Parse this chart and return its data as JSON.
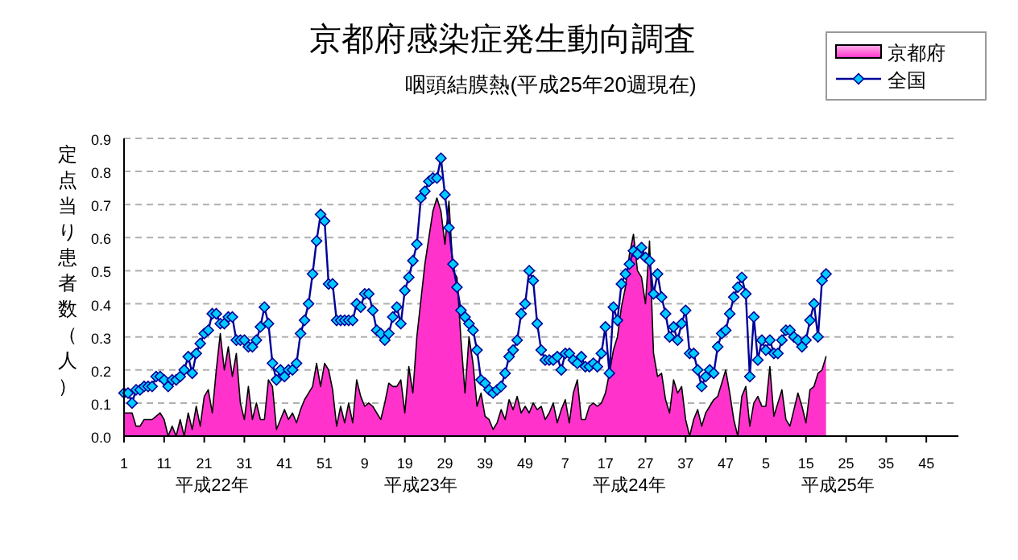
{
  "chart_data": {
    "type": "area",
    "title": "京都府感染症発生動向調査",
    "subtitle": "咽頭結膜熱(平成25年20週現在)",
    "ylabel": "定点当り患者数（人）",
    "annotations": [
      "平成22年",
      "平成23年",
      "平成24年",
      "平成25年"
    ],
    "categories": [
      "1",
      null,
      null,
      null,
      null,
      null,
      null,
      null,
      null,
      null,
      "11",
      null,
      null,
      null,
      null,
      null,
      null,
      null,
      null,
      null,
      "21",
      null,
      null,
      null,
      null,
      null,
      null,
      null,
      null,
      null,
      "31",
      null,
      null,
      null,
      null,
      null,
      null,
      null,
      null,
      null,
      "41",
      null,
      null,
      null,
      null,
      null,
      null,
      null,
      null,
      null,
      "51",
      null,
      null,
      null,
      null,
      null,
      null,
      null,
      null,
      null,
      "9",
      null,
      null,
      null,
      null,
      null,
      null,
      null,
      null,
      null,
      "19",
      null,
      null,
      null,
      null,
      null,
      null,
      null,
      null,
      null,
      "29",
      null,
      null,
      null,
      null,
      null,
      null,
      null,
      null,
      null,
      "39",
      null,
      null,
      null,
      null,
      null,
      null,
      null,
      null,
      null,
      "49",
      null,
      null,
      null,
      null,
      null,
      null,
      null,
      null,
      null,
      "7",
      null,
      null,
      null,
      null,
      null,
      null,
      null,
      null,
      null,
      "17",
      null,
      null,
      null,
      null,
      null,
      null,
      null,
      null,
      null,
      "27",
      null,
      null,
      null,
      null,
      null,
      null,
      null,
      null,
      null,
      "37",
      null,
      null,
      null,
      null,
      null,
      null,
      null,
      null,
      null,
      "47",
      null,
      null,
      null,
      null,
      null,
      null,
      null,
      null,
      null,
      "5",
      null,
      null,
      null,
      null,
      null,
      null,
      null,
      null,
      null,
      "15",
      null,
      null,
      null,
      null,
      null,
      null,
      null,
      null,
      null,
      "25",
      null,
      null,
      null,
      null,
      null,
      null,
      null,
      null,
      null,
      "35",
      null,
      null,
      null,
      null,
      null,
      null,
      null,
      null,
      null,
      "45",
      null,
      null,
      null,
      null,
      null,
      null,
      null
    ],
    "series": [
      {
        "name": "京都府",
        "color": "#ff33cc",
        "values": [
          0.07,
          0.07,
          0.07,
          0.03,
          0.03,
          0.05,
          0.05,
          0.05,
          0.06,
          0.07,
          0.05,
          0.0,
          0.03,
          0.0,
          0.05,
          0.0,
          0.07,
          0.02,
          0.09,
          0.03,
          0.12,
          0.14,
          0.07,
          0.2,
          0.31,
          0.2,
          0.27,
          0.18,
          0.25,
          0.1,
          0.05,
          0.15,
          0.05,
          0.1,
          0.05,
          0.05,
          0.17,
          0.15,
          0.02,
          0.05,
          0.08,
          0.05,
          0.07,
          0.04,
          0.08,
          0.11,
          0.13,
          0.15,
          0.22,
          0.15,
          0.22,
          0.2,
          0.14,
          0.03,
          0.09,
          0.04,
          0.1,
          0.04,
          0.17,
          0.12,
          0.09,
          0.1,
          0.09,
          0.07,
          0.05,
          0.1,
          0.16,
          0.15,
          0.15,
          0.17,
          0.07,
          0.21,
          0.13,
          0.3,
          0.41,
          0.52,
          0.6,
          0.68,
          0.72,
          0.68,
          0.58,
          0.71,
          0.5,
          0.48,
          0.29,
          0.13,
          0.3,
          0.22,
          0.09,
          0.13,
          0.06,
          0.05,
          0.02,
          0.04,
          0.08,
          0.05,
          0.11,
          0.08,
          0.12,
          0.07,
          0.09,
          0.07,
          0.1,
          0.08,
          0.09,
          0.05,
          0.07,
          0.1,
          0.04,
          0.08,
          0.11,
          0.04,
          0.13,
          0.17,
          0.05,
          0.05,
          0.09,
          0.1,
          0.09,
          0.1,
          0.13,
          0.19,
          0.26,
          0.3,
          0.39,
          0.45,
          0.55,
          0.61,
          0.5,
          0.48,
          0.4,
          0.59,
          0.25,
          0.18,
          0.19,
          0.11,
          0.07,
          0.17,
          0.13,
          0.15,
          0.05,
          0.0,
          0.05,
          0.08,
          0.03,
          0.07,
          0.09,
          0.11,
          0.12,
          0.16,
          0.2,
          0.13,
          0.05,
          0.0,
          0.12,
          0.15,
          0.03,
          0.1,
          0.12,
          0.09,
          0.09,
          0.21,
          0.06,
          0.1,
          0.14,
          0.05,
          0.03,
          0.08,
          0.13,
          0.09,
          0.04,
          0.14,
          0.15,
          0.19,
          0.2,
          0.24,
          null,
          null,
          null,
          null,
          null,
          null,
          null,
          null,
          null,
          null,
          null,
          null,
          null,
          null,
          null,
          null,
          null,
          null,
          null,
          null,
          null,
          null,
          null,
          null,
          null,
          null,
          null,
          null,
          null,
          null,
          null,
          null
        ]
      },
      {
        "name": "全国",
        "type": "line",
        "color": "#000099",
        "marker": "diamond",
        "values": [
          0.13,
          0.13,
          0.1,
          0.14,
          0.14,
          0.15,
          0.15,
          0.15,
          0.18,
          0.18,
          0.17,
          0.15,
          0.17,
          0.17,
          0.18,
          0.2,
          0.24,
          0.19,
          0.25,
          0.28,
          0.31,
          0.32,
          0.37,
          0.37,
          0.34,
          0.34,
          0.36,
          0.36,
          0.29,
          0.29,
          0.29,
          0.27,
          0.27,
          0.29,
          0.33,
          0.39,
          0.34,
          0.22,
          0.17,
          0.2,
          0.18,
          0.2,
          0.2,
          0.22,
          0.31,
          0.35,
          0.4,
          0.49,
          0.59,
          0.67,
          0.65,
          0.46,
          0.46,
          0.35,
          0.35,
          0.35,
          0.35,
          0.35,
          0.4,
          0.39,
          0.43,
          0.43,
          0.38,
          0.32,
          0.31,
          0.29,
          0.31,
          0.36,
          0.39,
          0.34,
          0.44,
          0.48,
          0.53,
          0.58,
          0.72,
          0.74,
          0.77,
          0.78,
          0.78,
          0.84,
          0.73,
          0.63,
          0.52,
          0.45,
          0.38,
          0.36,
          0.34,
          0.32,
          0.26,
          0.17,
          0.16,
          0.14,
          0.13,
          0.14,
          0.15,
          0.19,
          0.24,
          0.26,
          0.29,
          0.37,
          0.4,
          0.5,
          0.47,
          0.34,
          0.26,
          0.23,
          0.23,
          0.23,
          0.24,
          0.2,
          0.25,
          0.25,
          0.23,
          0.22,
          0.24,
          0.21,
          0.21,
          0.22,
          0.21,
          0.25,
          0.33,
          0.19,
          0.39,
          0.35,
          0.46,
          0.49,
          0.52,
          0.56,
          0.55,
          0.57,
          0.54,
          0.53,
          0.43,
          0.49,
          0.42,
          0.37,
          0.3,
          0.33,
          0.29,
          0.34,
          0.38,
          0.25,
          0.25,
          0.2,
          0.15,
          0.18,
          0.2,
          0.19,
          0.27,
          0.31,
          0.32,
          0.37,
          0.42,
          0.45,
          0.48,
          0.43,
          0.18,
          0.36,
          0.23,
          0.29,
          0.26,
          0.29,
          0.25,
          0.25,
          0.29,
          0.32,
          0.32,
          0.3,
          0.29,
          0.27,
          0.29,
          0.35,
          0.4,
          0.3,
          0.47,
          0.49,
          null,
          null,
          null,
          null,
          null,
          null,
          null,
          null,
          null,
          null,
          null,
          null,
          null,
          null,
          null,
          null,
          null,
          null,
          null,
          null,
          null,
          null,
          null,
          null,
          null,
          null,
          null,
          null,
          null,
          null,
          null,
          null
        ]
      }
    ],
    "ylim": [
      0,
      0.9
    ],
    "yticks": [
      {
        "value": 0,
        "label": "0.0"
      },
      {
        "value": 0.1,
        "label": "0.1"
      },
      {
        "value": 0.2,
        "label": "0.2"
      },
      {
        "value": 0.3,
        "label": "0.3"
      },
      {
        "value": 0.4,
        "label": "0.4"
      },
      {
        "value": 0.5,
        "label": "0.5"
      },
      {
        "value": 0.6,
        "label": "0.6"
      },
      {
        "value": 0.7,
        "label": "0.7"
      },
      {
        "value": 0.8,
        "label": "0.8"
      },
      {
        "value": 0.9,
        "label": "0.9"
      }
    ],
    "grid": "y",
    "legend": "top right"
  }
}
